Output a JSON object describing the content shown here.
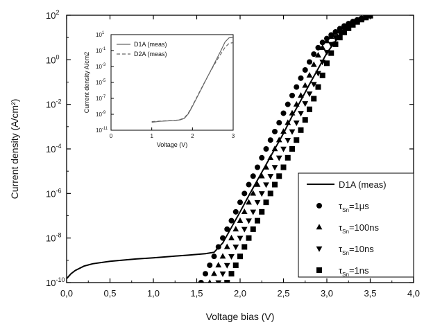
{
  "chart_data": [
    {
      "type": "scatter",
      "xlabel": "Voltage bias (V)",
      "ylabel": "Current density (A/cm²)",
      "xlim": [
        0.0,
        4.0
      ],
      "ylim": [
        1e-10,
        100
      ],
      "y_scale": "log",
      "x_ticks": [
        "0,0",
        "0,5",
        "1,0",
        "1,5",
        "2,0",
        "2,5",
        "3,0",
        "3,5",
        "4,0"
      ],
      "y_ticks": [
        {
          "base": "10",
          "exp": "-10",
          "value": 1e-10
        },
        {
          "base": "10",
          "exp": "-8",
          "value": 1e-08
        },
        {
          "base": "10",
          "exp": "-6",
          "value": 1e-06
        },
        {
          "base": "10",
          "exp": "-4",
          "value": 0.0001
        },
        {
          "base": "10",
          "exp": "-2",
          "value": 0.01
        },
        {
          "base": "10",
          "exp": "0",
          "value": 1
        },
        {
          "base": "10",
          "exp": "2",
          "value": 100
        }
      ],
      "legend_position": "bottom-right",
      "series": [
        {
          "name": "D1A (meas)",
          "legend": {
            "main": "D1A (meas)"
          },
          "style": "line",
          "color": "#000000",
          "x": [
            0.0,
            0.05,
            0.1,
            0.2,
            0.3,
            0.5,
            0.8,
            1.0,
            1.2,
            1.4,
            1.6,
            1.7,
            1.8,
            1.9,
            2.0,
            2.1,
            2.2,
            2.3,
            2.4,
            2.5,
            2.6,
            2.7,
            2.8,
            2.9,
            3.0,
            3.1,
            3.2,
            3.3,
            3.4,
            3.5
          ],
          "y": [
            1.5e-10,
            2.5e-10,
            3.5e-10,
            5.5e-10,
            7e-10,
            9e-10,
            1.15e-09,
            1.3e-09,
            1.5e-09,
            1.7e-09,
            2e-09,
            2.3e-09,
            6e-09,
            3e-08,
            1.5e-07,
            8e-07,
            4e-06,
            2e-05,
            0.0001,
            0.0005,
            0.003,
            0.015,
            0.08,
            0.4,
            2,
            7,
            20,
            45,
            75,
            100
          ]
        },
        {
          "name": "τSn=1μs",
          "legend": {
            "tau": "τ",
            "sub": "Sn",
            "value": "=1μs"
          },
          "style": "marker",
          "marker": "circle",
          "color": "#000000",
          "x": [
            1.55,
            1.6,
            1.65,
            1.7,
            1.75,
            1.8,
            1.85,
            1.9,
            1.95,
            2.0,
            2.05,
            2.1,
            2.15,
            2.2,
            2.25,
            2.3,
            2.35,
            2.4,
            2.45,
            2.5,
            2.55,
            2.6,
            2.65,
            2.7,
            2.75,
            2.8,
            2.85,
            2.9,
            2.95,
            3.0,
            3.05,
            3.1,
            3.15,
            3.2,
            3.25,
            3.3,
            3.35,
            3.4,
            3.45,
            3.5
          ],
          "y": [
            1e-10,
            2.5e-10,
            6e-10,
            1.5e-09,
            4e-09,
            1e-08,
            2.5e-08,
            6e-08,
            1.5e-07,
            4e-07,
            1e-06,
            2.5e-06,
            6e-06,
            1.5e-05,
            4e-05,
            0.0001,
            0.00025,
            0.0006,
            0.0015,
            0.004,
            0.01,
            0.025,
            0.06,
            0.15,
            0.35,
            0.8,
            1.8,
            3.5,
            6,
            9,
            13,
            18,
            25,
            33,
            42,
            52,
            62,
            72,
            83,
            95
          ]
        },
        {
          "name": "τSn=100ns",
          "legend": {
            "tau": "τ",
            "sub": "Sn",
            "value": "=100ns"
          },
          "style": "marker",
          "marker": "triangle-up",
          "color": "#000000",
          "x": [
            1.65,
            1.7,
            1.75,
            1.8,
            1.85,
            1.9,
            1.95,
            2.0,
            2.05,
            2.1,
            2.15,
            2.2,
            2.25,
            2.3,
            2.35,
            2.4,
            2.45,
            2.5,
            2.55,
            2.6,
            2.65,
            2.7,
            2.75,
            2.8,
            2.85,
            2.9,
            2.95,
            3.0,
            3.05,
            3.1,
            3.15,
            3.2,
            3.25,
            3.3,
            3.35,
            3.4,
            3.45,
            3.5
          ],
          "y": [
            1e-10,
            2.5e-10,
            6e-10,
            1.5e-09,
            4e-09,
            1e-08,
            2.5e-08,
            6e-08,
            1.5e-07,
            4e-07,
            1e-06,
            2.5e-06,
            6e-06,
            1.5e-05,
            4e-05,
            0.0001,
            0.00025,
            0.0006,
            0.0015,
            0.004,
            0.01,
            0.025,
            0.07,
            0.2,
            0.6,
            1.6,
            3.5,
            7,
            11,
            16,
            22,
            30,
            39,
            49,
            60,
            71,
            82,
            95
          ]
        },
        {
          "name": "τSn=10ns",
          "legend": {
            "tau": "τ",
            "sub": "Sn",
            "value": "=10ns"
          },
          "style": "marker",
          "marker": "triangle-down",
          "color": "#000000",
          "x": [
            1.75,
            1.8,
            1.85,
            1.9,
            1.95,
            2.0,
            2.05,
            2.1,
            2.15,
            2.2,
            2.25,
            2.3,
            2.35,
            2.4,
            2.45,
            2.5,
            2.55,
            2.6,
            2.65,
            2.7,
            2.75,
            2.8,
            2.85,
            2.9,
            2.95,
            3.0,
            3.05,
            3.1,
            3.15,
            3.2,
            3.25,
            3.3,
            3.35,
            3.4,
            3.45,
            3.5
          ],
          "y": [
            1e-10,
            2.5e-10,
            6e-10,
            1.5e-09,
            4e-09,
            1e-08,
            2.5e-08,
            6e-08,
            1.5e-07,
            4e-07,
            1e-06,
            2.5e-06,
            6e-06,
            1.5e-05,
            4e-05,
            0.0001,
            0.00025,
            0.0006,
            0.0015,
            0.004,
            0.011,
            0.03,
            0.08,
            0.25,
            0.8,
            2.2,
            5,
            10,
            16,
            24,
            33,
            44,
            56,
            69,
            82,
            95
          ]
        },
        {
          "name": "τSn=1ns",
          "legend": {
            "tau": "τ",
            "sub": "Sn",
            "value": "=1ns"
          },
          "style": "marker",
          "marker": "square",
          "color": "#000000",
          "x": [
            1.85,
            1.9,
            1.95,
            2.0,
            2.05,
            2.1,
            2.15,
            2.2,
            2.25,
            2.3,
            2.35,
            2.4,
            2.45,
            2.5,
            2.55,
            2.6,
            2.65,
            2.7,
            2.75,
            2.8,
            2.85,
            2.9,
            2.95,
            3.0,
            3.05,
            3.1,
            3.15,
            3.2,
            3.25,
            3.3,
            3.35,
            3.4,
            3.45,
            3.5
          ],
          "y": [
            1e-10,
            2.5e-10,
            6e-10,
            1.5e-09,
            4e-09,
            1e-08,
            2.5e-08,
            6e-08,
            1.5e-07,
            4e-07,
            1e-06,
            2.5e-06,
            6e-06,
            1.5e-05,
            4e-05,
            0.0001,
            0.00025,
            0.0007,
            0.002,
            0.006,
            0.018,
            0.06,
            0.2,
            0.7,
            2,
            5,
            10,
            17,
            26,
            37,
            50,
            64,
            79,
            95
          ]
        }
      ]
    },
    {
      "type": "line",
      "xlabel": "Voltage (V)",
      "ylabel": "Current density A/cm2",
      "xlim": [
        0,
        3
      ],
      "ylim": [
        1e-11,
        10
      ],
      "y_scale": "log",
      "x_ticks": [
        "0",
        "1",
        "2",
        "3"
      ],
      "y_ticks": [
        {
          "base": "10",
          "exp": "-11",
          "value": 1e-11
        },
        {
          "base": "10",
          "exp": "-9",
          "value": 1e-09
        },
        {
          "base": "10",
          "exp": "-7",
          "value": 1e-07
        },
        {
          "base": "10",
          "exp": "-5",
          "value": 1e-05
        },
        {
          "base": "10",
          "exp": "-3",
          "value": 0.001
        },
        {
          "base": "10",
          "exp": "-1",
          "value": 0.1
        },
        {
          "base": "10",
          "exp": "1",
          "value": 10
        }
      ],
      "legend_position": "top-left",
      "series": [
        {
          "name": "D1A (meas)",
          "style": "solid",
          "color": "#666666",
          "x": [
            1.0,
            1.2,
            1.4,
            1.6,
            1.7,
            1.8,
            1.9,
            2.0,
            2.1,
            2.2,
            2.3,
            2.4,
            2.5,
            2.6,
            2.7,
            2.8,
            2.9,
            3.0
          ],
          "y": [
            1e-10,
            1.3e-10,
            1.5e-10,
            1.7e-10,
            2e-10,
            3e-10,
            1.2e-09,
            1e-08,
            1e-07,
            1e-06,
            1e-05,
            0.0001,
            0.001,
            0.01,
            0.1,
            1.2,
            4,
            4.5
          ]
        },
        {
          "name": "D2A (meas)",
          "style": "dashed",
          "color": "#666666",
          "x": [
            1.0,
            1.2,
            1.4,
            1.6,
            1.7,
            1.8,
            1.9,
            2.0,
            2.1,
            2.2,
            2.3,
            2.4,
            2.5,
            2.6,
            2.7,
            2.8,
            2.9,
            3.0
          ],
          "y": [
            1.2e-10,
            1.4e-10,
            1.6e-10,
            1.8e-10,
            2.2e-10,
            3.5e-10,
            1.5e-09,
            1.2e-08,
            1.2e-07,
            1.2e-06,
            1.1e-05,
            0.0001,
            0.0008,
            0.006,
            0.04,
            0.25,
            0.8,
            1.0
          ]
        }
      ]
    }
  ]
}
